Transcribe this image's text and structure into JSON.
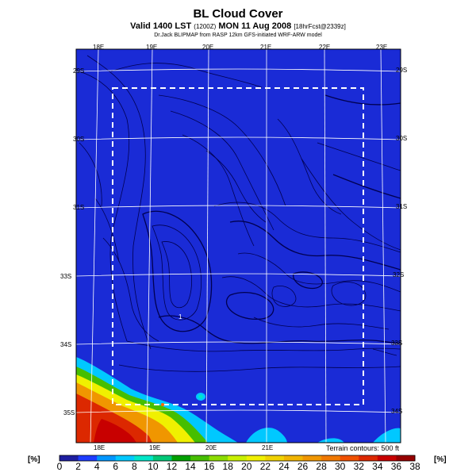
{
  "header": {
    "title": "BL Cloud Cover",
    "valid": "Valid 1400 LST",
    "valid_small": "(1200Z)",
    "date": "MON 11 Aug 2008",
    "forecast": "[18hrFcst@2339z]",
    "credit": "Dr.Jack BLIPMAP from RASP 12km GFS-initiated WRF-ARW model"
  },
  "map": {
    "lon_labels_top": [
      "18E",
      "19E",
      "20E",
      "21E",
      "22E",
      "23E"
    ],
    "lon_labels_bottom": [
      "18E",
      "19E",
      "20E",
      "21E"
    ],
    "lat_labels_right": [
      "29S",
      "30S",
      "31S",
      "32S",
      "33S",
      "34S"
    ],
    "lat_labels_left": [
      "29S",
      "30S",
      "31S",
      "33S",
      "34S",
      "35S"
    ],
    "point_label": "1",
    "terrain_note": "Terrain contours: 500 ft",
    "colors": {
      "background_blue": "#1a2bd6",
      "domain_box": "#ffffff",
      "grid": "#ffffff",
      "contour": "#000050"
    }
  },
  "legend": {
    "unit_label": "[%]",
    "ticks": [
      "0",
      "2",
      "4",
      "6",
      "8",
      "10",
      "12",
      "14",
      "16",
      "18",
      "20",
      "22",
      "24",
      "26",
      "28",
      "30",
      "32",
      "34",
      "36",
      "38"
    ],
    "colors": [
      "#1e1ea0",
      "#1e3cff",
      "#0096ff",
      "#00c8ff",
      "#00e6c8",
      "#00c878",
      "#00a000",
      "#46be00",
      "#8cdc00",
      "#c8f000",
      "#f0f000",
      "#f0d200",
      "#f0b400",
      "#f09600",
      "#f07800",
      "#f05000",
      "#dc2800",
      "#c80000",
      "#960000"
    ]
  }
}
